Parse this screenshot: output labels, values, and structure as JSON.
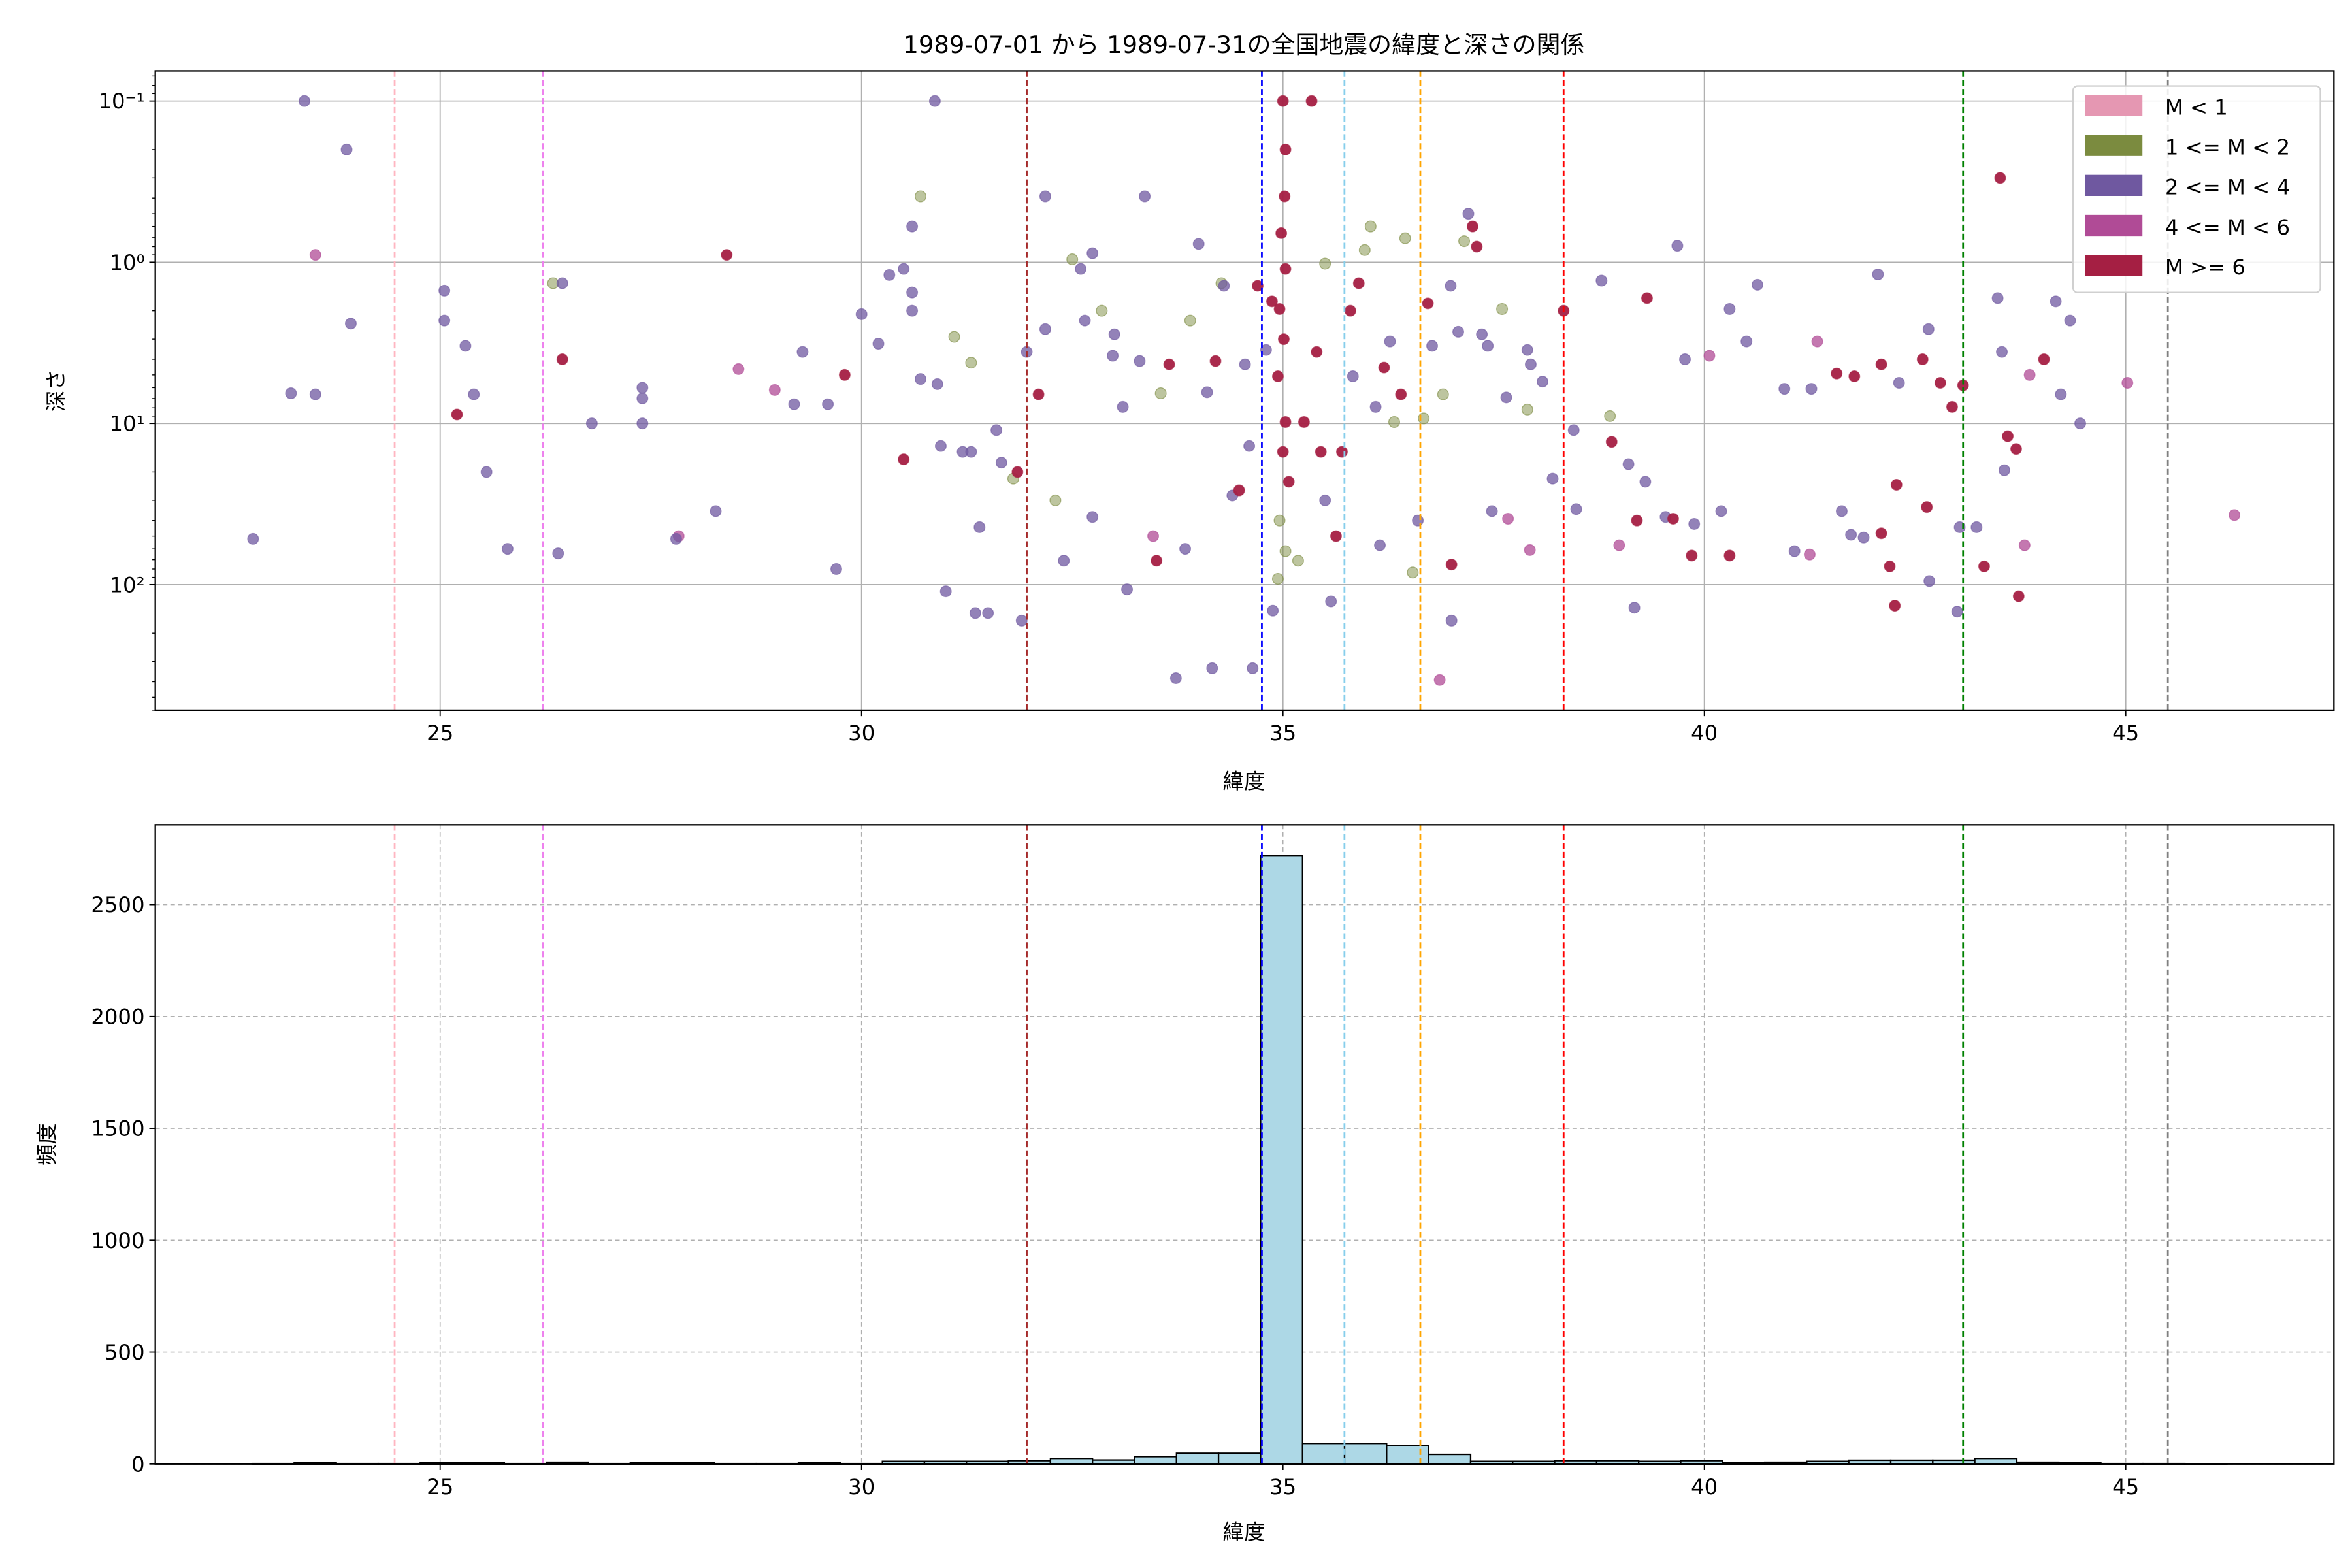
{
  "chart_data": [
    {
      "type": "scatter",
      "title": "1989-07-01 から 1989-07-31の全国地震の緯度と深さの関係",
      "xlabel": "緯度",
      "ylabel": "深さ",
      "xlim": [
        21.62,
        47.47
      ],
      "ylim": [
        600,
        0.065
      ],
      "yscale": "log",
      "y_inverted": true,
      "grid": true,
      "xticks": [
        25,
        30,
        35,
        40,
        45
      ],
      "xtick_labels": [
        "25",
        "30",
        "35",
        "40",
        "45"
      ],
      "yticks": [
        0.1,
        1,
        10,
        100
      ],
      "ytick_labels": [
        "10⁻¹",
        "10⁰",
        "10¹",
        "10²"
      ],
      "legend_position": "top-right",
      "categories": [
        {
          "label": "M < 1",
          "color": "#e597b2"
        },
        {
          "label": "1 <= M < 2",
          "color": "#7b8b3f"
        },
        {
          "label": "2 <= M < 4",
          "color": "#6f58a0"
        },
        {
          "label": "4 <= M < 6",
          "color": "#b04b96"
        },
        {
          "label": "M >= 6",
          "color": "#a51f43"
        }
      ],
      "vlines": [
        {
          "x": 24.46,
          "color": "#ffb6c1"
        },
        {
          "x": 26.22,
          "color": "#ee82ee"
        },
        {
          "x": 31.96,
          "color": "#a52a2a"
        },
        {
          "x": 34.75,
          "color": "#0000ff"
        },
        {
          "x": 35.73,
          "color": "#87ceeb"
        },
        {
          "x": 36.63,
          "color": "#ffa500"
        },
        {
          "x": 38.33,
          "color": "#ff0000"
        },
        {
          "x": 43.07,
          "color": "#008000"
        },
        {
          "x": 45.5,
          "color": "#808080"
        }
      ],
      "points": [
        [
          22.78,
          52,
          2
        ],
        [
          23.39,
          0.1,
          2
        ],
        [
          23.23,
          6.5,
          2
        ],
        [
          23.52,
          0.9,
          3
        ],
        [
          23.52,
          6.6,
          2
        ],
        [
          23.89,
          0.2,
          2
        ],
        [
          23.94,
          2.4,
          2
        ],
        [
          25.05,
          1.5,
          2
        ],
        [
          25.05,
          2.3,
          2
        ],
        [
          25.2,
          8.8,
          4
        ],
        [
          25.3,
          3.3,
          2
        ],
        [
          25.4,
          6.6,
          2
        ],
        [
          25.55,
          20,
          2
        ],
        [
          25.8,
          60,
          2
        ],
        [
          26.34,
          1.35,
          1
        ],
        [
          26.45,
          1.35,
          2
        ],
        [
          26.45,
          4.0,
          4
        ],
        [
          26.4,
          64,
          2
        ],
        [
          26.8,
          10,
          2
        ],
        [
          27.4,
          7,
          2
        ],
        [
          27.4,
          6,
          2
        ],
        [
          27.4,
          10,
          2
        ],
        [
          27.83,
          50,
          3
        ],
        [
          27.8,
          52,
          2
        ],
        [
          28.27,
          35,
          2
        ],
        [
          28.4,
          0.9,
          4
        ],
        [
          28.54,
          4.6,
          3
        ],
        [
          28.97,
          6.2,
          3
        ],
        [
          29.2,
          7.6,
          2
        ],
        [
          29.3,
          3.6,
          2
        ],
        [
          29.6,
          7.6,
          2
        ],
        [
          29.7,
          80,
          2
        ],
        [
          29.8,
          5.0,
          4
        ],
        [
          30.0,
          2.1,
          2
        ],
        [
          30.2,
          3.2,
          2
        ],
        [
          30.33,
          1.2,
          2
        ],
        [
          30.5,
          1.1,
          2
        ],
        [
          30.5,
          16.7,
          4
        ],
        [
          30.6,
          1.54,
          2
        ],
        [
          30.6,
          2.0,
          2
        ],
        [
          30.6,
          0.6,
          2
        ],
        [
          30.7,
          5.3,
          2
        ],
        [
          30.7,
          0.39,
          1
        ],
        [
          30.87,
          0.1,
          2
        ],
        [
          30.9,
          5.7,
          2
        ],
        [
          30.94,
          13.8,
          2
        ],
        [
          31.0,
          110,
          2
        ],
        [
          31.1,
          2.9,
          1
        ],
        [
          31.2,
          15,
          2
        ],
        [
          31.3,
          15,
          2
        ],
        [
          31.3,
          4.2,
          1
        ],
        [
          31.35,
          150,
          2
        ],
        [
          31.4,
          44,
          2
        ],
        [
          31.5,
          150,
          2
        ],
        [
          31.6,
          11,
          2
        ],
        [
          31.66,
          17.5,
          2
        ],
        [
          31.8,
          22,
          1
        ],
        [
          31.85,
          20,
          4
        ],
        [
          31.9,
          167,
          2
        ],
        [
          31.96,
          3.6,
          2
        ],
        [
          32.1,
          6.6,
          4
        ],
        [
          32.18,
          0.39,
          2
        ],
        [
          32.18,
          2.6,
          2
        ],
        [
          32.3,
          30,
          1
        ],
        [
          32.4,
          71,
          2
        ],
        [
          32.5,
          0.96,
          1
        ],
        [
          32.6,
          1.1,
          2
        ],
        [
          32.65,
          2.3,
          2
        ],
        [
          32.74,
          38,
          2
        ],
        [
          32.74,
          0.88,
          2
        ],
        [
          32.85,
          2.0,
          1
        ],
        [
          32.98,
          3.8,
          2
        ],
        [
          33.0,
          2.8,
          2
        ],
        [
          33.1,
          7.9,
          2
        ],
        [
          33.15,
          107,
          2
        ],
        [
          33.3,
          4.1,
          2
        ],
        [
          33.36,
          0.39,
          2
        ],
        [
          33.46,
          50,
          3
        ],
        [
          33.5,
          71,
          4
        ],
        [
          33.55,
          6.5,
          1
        ],
        [
          33.65,
          4.3,
          4
        ],
        [
          33.73,
          380,
          2
        ],
        [
          33.84,
          60,
          2
        ],
        [
          33.9,
          2.3,
          1
        ],
        [
          34.0,
          0.77,
          2
        ],
        [
          34.1,
          6.4,
          2
        ],
        [
          34.16,
          330,
          2
        ],
        [
          34.2,
          4.1,
          4
        ],
        [
          34.27,
          1.35,
          1
        ],
        [
          34.3,
          1.4,
          2
        ],
        [
          34.4,
          28,
          2
        ],
        [
          34.48,
          26,
          4
        ],
        [
          34.55,
          4.3,
          2
        ],
        [
          34.6,
          13.8,
          2
        ],
        [
          34.64,
          330,
          2
        ],
        [
          34.7,
          1.4,
          4
        ],
        [
          34.8,
          3.5,
          2
        ],
        [
          34.87,
          1.75,
          4
        ],
        [
          35.0,
          0.1,
          4
        ],
        [
          35.03,
          0.2,
          4
        ],
        [
          35.02,
          0.39,
          4
        ],
        [
          34.98,
          0.66,
          4
        ],
        [
          35.03,
          1.1,
          4
        ],
        [
          34.96,
          1.95,
          4
        ],
        [
          35.01,
          3,
          4
        ],
        [
          34.94,
          5.1,
          4
        ],
        [
          35.03,
          9.8,
          4
        ],
        [
          35.0,
          15,
          4
        ],
        [
          35.07,
          23,
          4
        ],
        [
          34.96,
          40,
          1
        ],
        [
          35.03,
          62,
          1
        ],
        [
          34.88,
          145,
          2
        ],
        [
          34.94,
          92,
          1
        ],
        [
          35.18,
          71,
          1
        ],
        [
          35.34,
          0.1,
          4
        ],
        [
          35.4,
          3.6,
          4
        ],
        [
          35.25,
          9.8,
          4
        ],
        [
          35.45,
          15,
          4
        ],
        [
          35.5,
          1.02,
          1
        ],
        [
          35.5,
          30,
          2
        ],
        [
          35.57,
          127,
          2
        ],
        [
          35.63,
          50,
          4
        ],
        [
          35.7,
          15,
          4
        ],
        [
          35.8,
          2,
          4
        ],
        [
          35.83,
          5.1,
          2
        ],
        [
          35.9,
          1.35,
          4
        ],
        [
          35.97,
          0.84,
          1
        ],
        [
          36.04,
          0.6,
          1
        ],
        [
          36.1,
          7.9,
          2
        ],
        [
          36.15,
          57,
          2
        ],
        [
          36.2,
          4.5,
          4
        ],
        [
          36.27,
          3.1,
          2
        ],
        [
          36.32,
          9.8,
          1
        ],
        [
          36.4,
          6.6,
          4
        ],
        [
          36.45,
          0.71,
          1
        ],
        [
          36.54,
          84,
          1
        ],
        [
          36.6,
          40,
          2
        ],
        [
          36.67,
          9.3,
          1
        ],
        [
          36.72,
          1.8,
          4
        ],
        [
          36.77,
          3.3,
          2
        ],
        [
          36.86,
          390,
          3
        ],
        [
          36.9,
          6.6,
          1
        ],
        [
          36.99,
          1.4,
          2
        ],
        [
          37.0,
          75,
          4
        ],
        [
          37.0,
          167,
          2
        ],
        [
          37.08,
          2.7,
          2
        ],
        [
          37.15,
          0.74,
          1
        ],
        [
          37.2,
          0.5,
          2
        ],
        [
          37.25,
          0.6,
          4
        ],
        [
          37.3,
          0.8,
          4
        ],
        [
          37.36,
          2.8,
          2
        ],
        [
          37.43,
          3.3,
          2
        ],
        [
          37.48,
          35,
          2
        ],
        [
          37.6,
          1.95,
          1
        ],
        [
          37.65,
          6.9,
          2
        ],
        [
          37.67,
          39,
          3
        ],
        [
          37.9,
          3.5,
          2
        ],
        [
          37.94,
          4.3,
          2
        ],
        [
          38.08,
          5.5,
          2
        ],
        [
          38.33,
          2.0,
          4
        ],
        [
          38.45,
          11,
          2
        ],
        [
          38.48,
          34,
          2
        ],
        [
          38.2,
          22,
          2
        ],
        [
          37.9,
          8.2,
          1
        ],
        [
          37.93,
          61,
          3
        ],
        [
          38.78,
          1.3,
          2
        ],
        [
          38.88,
          9,
          1
        ],
        [
          38.9,
          13,
          4
        ],
        [
          38.99,
          57,
          3
        ],
        [
          39.1,
          17.9,
          2
        ],
        [
          39.17,
          139,
          2
        ],
        [
          39.2,
          40,
          4
        ],
        [
          39.3,
          23,
          2
        ],
        [
          39.32,
          1.67,
          4
        ],
        [
          39.54,
          38,
          2
        ],
        [
          39.63,
          39,
          4
        ],
        [
          39.68,
          0.79,
          2
        ],
        [
          39.77,
          4,
          2
        ],
        [
          39.88,
          42,
          2
        ],
        [
          39.85,
          66,
          4
        ],
        [
          40.06,
          3.8,
          3
        ],
        [
          40.2,
          35,
          2
        ],
        [
          40.3,
          1.95,
          2
        ],
        [
          40.5,
          3.1,
          2
        ],
        [
          40.63,
          1.38,
          2
        ],
        [
          40.3,
          66,
          4
        ],
        [
          40.95,
          6.1,
          2
        ],
        [
          41.07,
          62,
          2
        ],
        [
          41.25,
          65,
          3
        ],
        [
          41.27,
          6.1,
          2
        ],
        [
          41.34,
          3.1,
          3
        ],
        [
          41.57,
          4.9,
          4
        ],
        [
          41.63,
          35,
          2
        ],
        [
          41.74,
          49,
          2
        ],
        [
          41.78,
          5.1,
          4
        ],
        [
          41.89,
          51,
          2
        ],
        [
          42.06,
          1.19,
          2
        ],
        [
          42.1,
          48,
          4
        ],
        [
          42.1,
          4.3,
          4
        ],
        [
          42.2,
          77,
          4
        ],
        [
          42.26,
          135,
          4
        ],
        [
          42.28,
          24,
          4
        ],
        [
          42.31,
          5.6,
          2
        ],
        [
          42.59,
          4.0,
          4
        ],
        [
          42.64,
          33,
          4
        ],
        [
          42.66,
          2.6,
          2
        ],
        [
          42.67,
          95,
          2
        ],
        [
          42.8,
          5.6,
          4
        ],
        [
          42.94,
          7.9,
          4
        ],
        [
          43.0,
          147,
          2
        ],
        [
          43.03,
          44,
          2
        ],
        [
          43.07,
          5.8,
          4
        ],
        [
          43.23,
          44,
          2
        ],
        [
          43.32,
          77,
          4
        ],
        [
          43.48,
          1.67,
          2
        ],
        [
          43.51,
          0.3,
          4
        ],
        [
          43.53,
          3.6,
          2
        ],
        [
          43.56,
          19.5,
          2
        ],
        [
          43.6,
          12,
          4
        ],
        [
          43.7,
          14.4,
          4
        ],
        [
          43.73,
          118,
          4
        ],
        [
          43.8,
          57,
          3
        ],
        [
          43.86,
          5,
          3
        ],
        [
          44.03,
          4,
          4
        ],
        [
          44.17,
          1.75,
          2
        ],
        [
          44.23,
          6.6,
          2
        ],
        [
          44.34,
          2.3,
          2
        ],
        [
          44.46,
          10,
          2
        ],
        [
          45.02,
          5.6,
          3
        ],
        [
          46.29,
          37,
          3
        ]
      ]
    },
    {
      "type": "bar",
      "subtype": "histogram",
      "xlabel": "緯度",
      "ylabel": "頻度",
      "xlim": [
        21.62,
        47.47
      ],
      "ylim": [
        0,
        2857
      ],
      "grid": true,
      "xticks": [
        25,
        30,
        35,
        40,
        45
      ],
      "xtick_labels": [
        "25",
        "30",
        "35",
        "40",
        "45"
      ],
      "yticks": [
        0,
        500,
        1000,
        1500,
        2000,
        2500
      ],
      "ytick_labels": [
        "0",
        "500",
        "1000",
        "1500",
        "2000",
        "2500"
      ],
      "bar_color": "#add8e6",
      "bin_start": 22.77,
      "bin_end": 46.2,
      "counts": [
        2,
        5,
        2,
        2,
        5,
        5,
        2,
        8,
        2,
        5,
        5,
        2,
        2,
        5,
        2,
        12,
        12,
        12,
        15,
        25,
        18,
        33,
        48,
        48,
        2720,
        92,
        92,
        82,
        43,
        12,
        12,
        15,
        15,
        12,
        15,
        5,
        8,
        12,
        17,
        17,
        17,
        25,
        8,
        5,
        2,
        2,
        1
      ],
      "vlines_same_as_above": true
    }
  ]
}
